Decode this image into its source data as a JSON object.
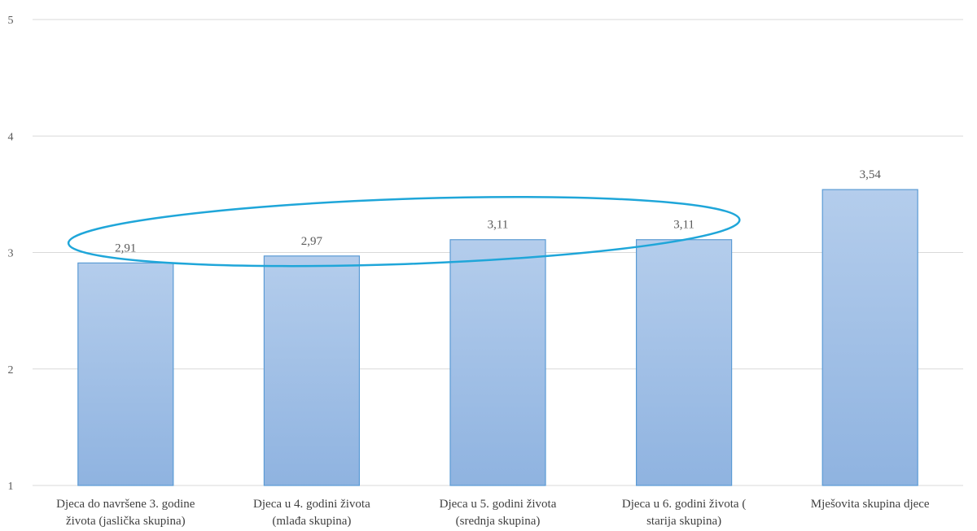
{
  "chart_data": {
    "type": "bar",
    "categories": [
      [
        "Djeca do navršene 3. godine",
        "života (jaslička skupina)"
      ],
      [
        "Djeca u 4. godini života",
        "(mlađa skupina)"
      ],
      [
        "Djeca u 5. godini života",
        "(srednja skupina)"
      ],
      [
        "Djeca u 6. godini života (",
        "starija skupina)"
      ],
      [
        "Mješovita skupina djece"
      ]
    ],
    "values": [
      2.91,
      2.97,
      3.11,
      3.11,
      3.54
    ],
    "data_labels": [
      "2,91",
      "2,97",
      "3,11",
      "3,11",
      "3,54"
    ],
    "yticks": [
      1,
      2,
      3,
      4,
      5
    ],
    "ytick_labels": [
      "1",
      "2",
      "3",
      "4",
      "5"
    ],
    "ylim": [
      1,
      5
    ],
    "grid": true,
    "legend": "none",
    "bar_color": "#9dbde6",
    "bar_border_color": "#5b9bd5",
    "annotation": {
      "type": "ellipse",
      "around_categories": [
        0,
        3
      ],
      "color": "#1fa6d9"
    }
  }
}
